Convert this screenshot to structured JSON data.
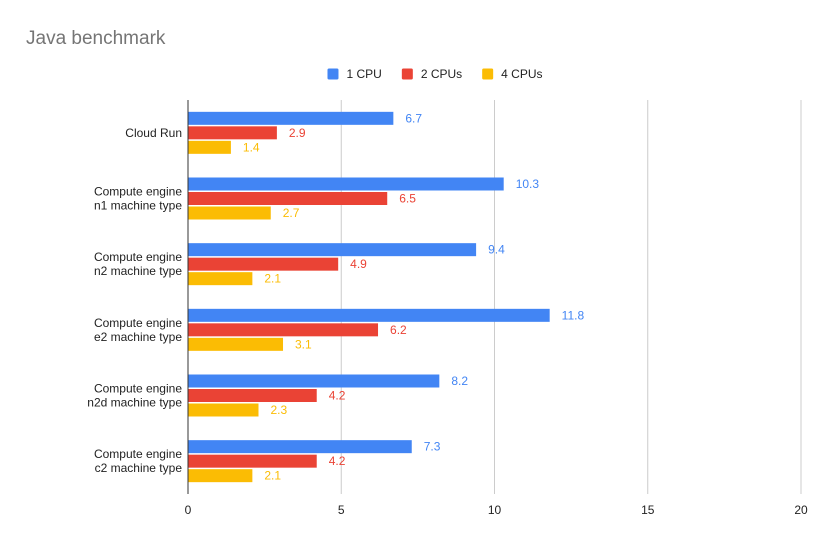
{
  "chart_data": {
    "type": "bar",
    "orientation": "horizontal",
    "title": "Java benchmark",
    "xlabel": "",
    "ylabel": "",
    "xlim": [
      0,
      20
    ],
    "xticks": [
      "0",
      "5",
      "10",
      "15",
      "20"
    ],
    "grid": true,
    "legend_position": "top",
    "categories": [
      [
        "Cloud Run"
      ],
      [
        "Compute engine",
        "n1 machine type"
      ],
      [
        "Compute engine",
        "n2 machine type"
      ],
      [
        "Compute engine",
        "e2 machine type"
      ],
      [
        "Compute engine",
        "n2d machine type"
      ],
      [
        "Compute engine",
        "c2 machine type"
      ]
    ],
    "series": [
      {
        "name": "1 CPU",
        "color": "#4285f4",
        "values": [
          6.7,
          10.3,
          9.4,
          11.8,
          8.2,
          7.3
        ]
      },
      {
        "name": "2 CPUs",
        "color": "#ea4335",
        "values": [
          2.9,
          6.5,
          4.9,
          6.2,
          4.2,
          4.2
        ]
      },
      {
        "name": "4 CPUs",
        "color": "#fbbc04",
        "values": [
          1.4,
          2.7,
          2.1,
          3.1,
          2.3,
          2.1
        ]
      }
    ]
  }
}
